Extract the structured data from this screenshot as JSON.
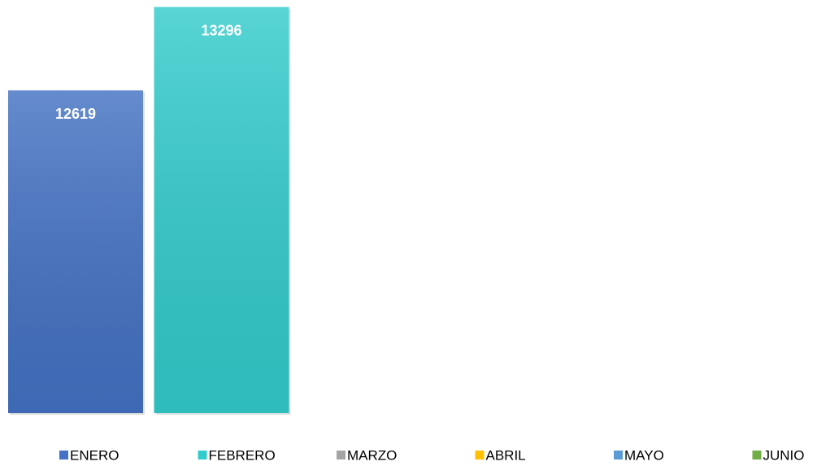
{
  "chart_data": {
    "type": "bar",
    "categories": [
      null
    ],
    "series": [
      {
        "name": "ENERO",
        "color": "#4472c4",
        "values": [
          12619
        ]
      },
      {
        "name": "FEBRERO",
        "color": "#33cccc",
        "values": [
          13296
        ]
      },
      {
        "name": "MARZO",
        "color": "#a5a5a5",
        "values": [
          null
        ]
      },
      {
        "name": "ABRIL",
        "color": "#ffc000",
        "values": [
          null
        ]
      },
      {
        "name": "MAYO",
        "color": "#5b9bd5",
        "values": [
          null
        ]
      },
      {
        "name": "JUNIO",
        "color": "#70ad47",
        "values": [
          null
        ]
      }
    ],
    "ylim": [
      10000,
      13300
    ],
    "data_labels": true,
    "legend": "bottom"
  }
}
